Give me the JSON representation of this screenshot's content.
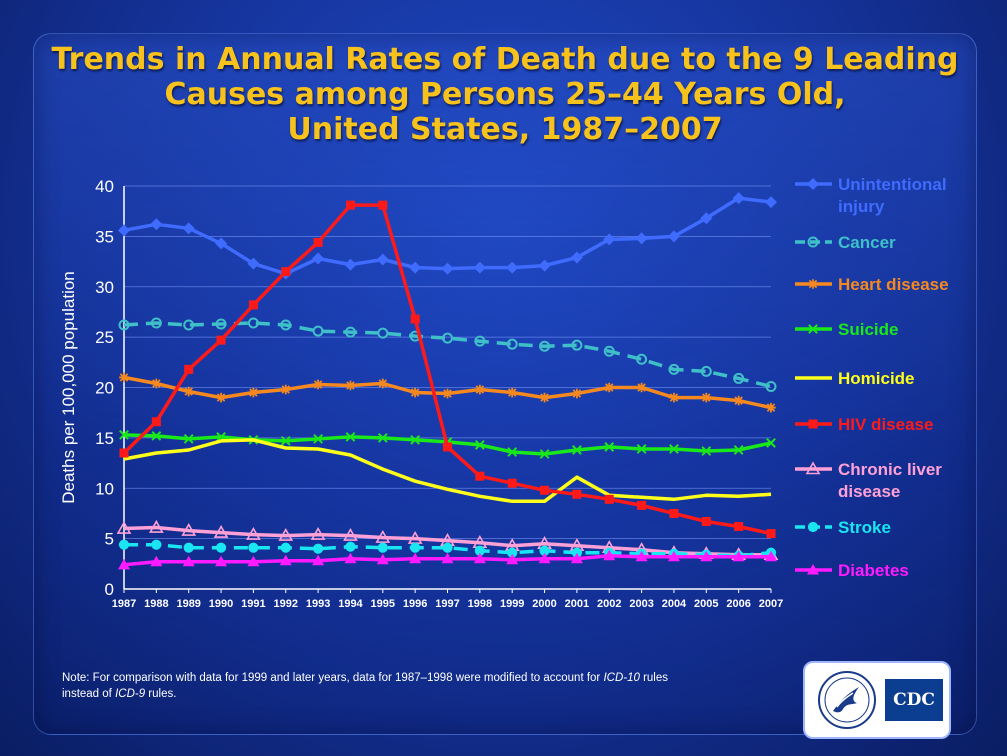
{
  "title_lines": [
    "Trends in Annual Rates of Death due to the 9 Leading",
    "Causes among Persons 25–44 Years Old,",
    "United States, 1987–2007"
  ],
  "note": {
    "prefix": "Note: For comparison with data for 1999 and later years, data for 1987–1998 were modified to account for ",
    "icd10": "ICD-10",
    "middle": " rules instead of ",
    "icd9": "ICD-9",
    "suffix": " rules."
  },
  "logo": {
    "text": "CDC",
    "icon": "hhs-eagle-icon"
  },
  "chart_data": {
    "type": "line",
    "title": "Trends in Annual Rates of Death due to the 9 Leading Causes among Persons 25–44 Years Old, United States, 1987–2007",
    "xlabel": "",
    "ylabel": "Deaths per 100,000 population",
    "ylim": [
      0,
      40
    ],
    "yticks": [
      0,
      5,
      10,
      15,
      20,
      25,
      30,
      35,
      40
    ],
    "grid": "horizontal",
    "legend_position": "right",
    "x": [
      1987,
      1988,
      1989,
      1990,
      1991,
      1992,
      1993,
      1994,
      1995,
      1996,
      1997,
      1998,
      1999,
      2000,
      2001,
      2002,
      2003,
      2004,
      2005,
      2006,
      2007
    ],
    "series": [
      {
        "name": "Unintentional injury",
        "color": "#3f6bff",
        "marker": "diamond",
        "dash": false,
        "values": [
          35.6,
          36.2,
          35.8,
          34.3,
          32.3,
          31.3,
          32.8,
          32.2,
          32.7,
          31.9,
          31.8,
          31.9,
          31.9,
          32.1,
          32.9,
          34.7,
          34.8,
          35.0,
          36.8,
          38.8,
          38.4
        ]
      },
      {
        "name": "Cancer",
        "color": "#3fc0c8",
        "marker": "circle-open",
        "dash": true,
        "values": [
          26.2,
          26.4,
          26.2,
          26.3,
          26.4,
          26.2,
          25.6,
          25.5,
          25.4,
          25.1,
          24.9,
          24.6,
          24.3,
          24.1,
          24.2,
          23.6,
          22.8,
          21.8,
          21.6,
          20.9,
          20.1
        ]
      },
      {
        "name": "Heart disease",
        "color": "#f5891f",
        "marker": "star",
        "dash": false,
        "values": [
          21.0,
          20.4,
          19.6,
          19.0,
          19.5,
          19.8,
          20.3,
          20.2,
          20.4,
          19.5,
          19.4,
          19.8,
          19.5,
          19.0,
          19.4,
          20.0,
          20.0,
          19.0,
          19.0,
          18.7,
          18.0
        ]
      },
      {
        "name": "Suicide",
        "color": "#19e819",
        "marker": "x",
        "dash": false,
        "values": [
          15.3,
          15.2,
          14.9,
          15.1,
          14.8,
          14.7,
          14.9,
          15.1,
          15.0,
          14.8,
          14.6,
          14.3,
          13.6,
          13.4,
          13.8,
          14.1,
          13.9,
          13.9,
          13.7,
          13.8,
          14.5
        ]
      },
      {
        "name": "Homicide",
        "color": "#ffff1a",
        "marker": "none",
        "dash": false,
        "values": [
          12.9,
          13.5,
          13.8,
          14.7,
          14.8,
          14.0,
          13.9,
          13.3,
          11.9,
          10.7,
          9.9,
          9.2,
          8.7,
          8.7,
          11.1,
          9.3,
          9.1,
          8.9,
          9.3,
          9.2,
          9.4
        ]
      },
      {
        "name": "HIV disease",
        "color": "#ff1a1a",
        "marker": "square",
        "dash": false,
        "values": [
          13.5,
          16.6,
          21.8,
          24.7,
          28.2,
          31.5,
          34.4,
          38.1,
          38.1,
          26.8,
          14.1,
          11.2,
          10.5,
          9.8,
          9.4,
          8.9,
          8.3,
          7.5,
          6.7,
          6.2,
          5.5
        ]
      },
      {
        "name": "Chronic liver disease",
        "color": "#ffa0d6",
        "marker": "triangle-open",
        "dash": false,
        "values": [
          6.0,
          6.1,
          5.8,
          5.6,
          5.4,
          5.3,
          5.4,
          5.3,
          5.1,
          5.0,
          4.8,
          4.6,
          4.3,
          4.5,
          4.3,
          4.1,
          3.9,
          3.6,
          3.5,
          3.4,
          3.4
        ]
      },
      {
        "name": "Stroke",
        "color": "#1ae6f2",
        "marker": "circle",
        "dash": true,
        "values": [
          4.4,
          4.4,
          4.1,
          4.1,
          4.1,
          4.1,
          4.0,
          4.2,
          4.1,
          4.1,
          4.1,
          3.8,
          3.6,
          3.8,
          3.6,
          3.6,
          3.5,
          3.5,
          3.4,
          3.3,
          3.6
        ]
      },
      {
        "name": "Diabetes",
        "color": "#ff1aff",
        "marker": "triangle",
        "dash": false,
        "values": [
          2.4,
          2.7,
          2.7,
          2.7,
          2.7,
          2.8,
          2.8,
          3.0,
          2.9,
          3.0,
          3.0,
          3.0,
          2.9,
          3.0,
          3.0,
          3.3,
          3.2,
          3.2,
          3.2,
          3.2,
          3.2
        ]
      }
    ],
    "legend_lines": [
      [
        "Unintentional",
        "injury"
      ],
      [
        "Cancer"
      ],
      [
        "Heart disease"
      ],
      [
        "Suicide"
      ],
      [
        "Homicide"
      ],
      [
        "HIV disease"
      ],
      [
        "Chronic liver",
        "disease"
      ],
      [
        "Stroke"
      ],
      [
        "Diabetes"
      ]
    ]
  }
}
